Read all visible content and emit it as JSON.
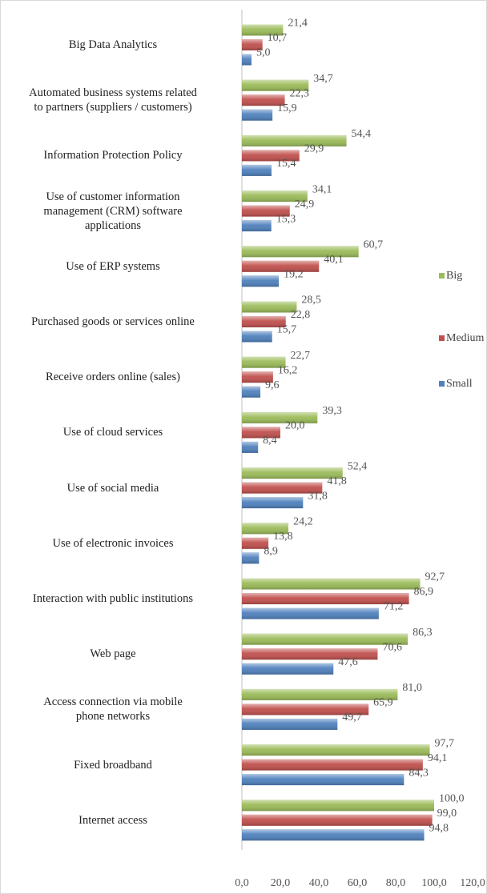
{
  "chart_data": {
    "type": "bar",
    "orientation": "horizontal",
    "categories": [
      "Big Data Analytics",
      "Automated business systems related\nto partners (suppliers / customers)",
      "Information Protection Policy",
      "Use of customer information\nmanagement (CRM) software\napplications",
      "Use of ERP systems",
      "Purchased goods or services online",
      "Receive orders online (sales)",
      "Use of cloud services",
      "Use of social media",
      "Use of electronic invoices",
      "Interaction with public institutions",
      "Web page",
      "Access connection via mobile\nphone networks",
      "Fixed broadband",
      "Internet access"
    ],
    "series": [
      {
        "name": "Big",
        "color": "#9bbb59",
        "values": [
          21.4,
          34.7,
          54.4,
          34.1,
          60.7,
          28.5,
          22.7,
          39.3,
          52.4,
          24.2,
          92.7,
          86.3,
          81.0,
          97.7,
          100.0
        ],
        "value_labels": [
          "21,4",
          "34,7",
          "54,4",
          "34,1",
          "60,7",
          "28,5",
          "22,7",
          "39,3",
          "52,4",
          "24,2",
          "92,7",
          "86,3",
          "81,0",
          "97,7",
          "100,0"
        ]
      },
      {
        "name": "Medium",
        "color": "#c0504d",
        "values": [
          10.7,
          22.3,
          29.9,
          24.9,
          40.1,
          22.8,
          16.2,
          20.0,
          41.8,
          13.8,
          86.9,
          70.6,
          65.9,
          94.1,
          99.0
        ],
        "value_labels": [
          "10,7",
          "22,3",
          "29,9",
          "24,9",
          "40,1",
          "22,8",
          "16,2",
          "20,0",
          "41,8",
          "13,8",
          "86,9",
          "70,6",
          "65,9",
          "94,1",
          "99,0"
        ]
      },
      {
        "name": "Small",
        "color": "#4f81bd",
        "values": [
          5.0,
          15.9,
          15.4,
          15.3,
          19.2,
          15.7,
          9.6,
          8.4,
          31.8,
          8.9,
          71.2,
          47.6,
          49.7,
          84.3,
          94.8
        ],
        "value_labels": [
          "5,0",
          "15,9",
          "15,4",
          "15,3",
          "19,2",
          "15,7",
          "9,6",
          "8,4",
          "31,8",
          "8,9",
          "71,2",
          "47,6",
          "49,7",
          "84,3",
          "94,8"
        ]
      }
    ],
    "xlim": [
      0,
      120
    ],
    "xticks": [
      {
        "value": 0,
        "label": "0,0"
      },
      {
        "value": 20,
        "label": "20,0"
      },
      {
        "value": 40,
        "label": "40,0"
      },
      {
        "value": 60,
        "label": "60,0"
      },
      {
        "value": 80,
        "label": "80,0"
      },
      {
        "value": 100,
        "label": "100,0"
      },
      {
        "value": 120,
        "label": "120,0"
      }
    ],
    "legend": "right",
    "grid": false
  }
}
